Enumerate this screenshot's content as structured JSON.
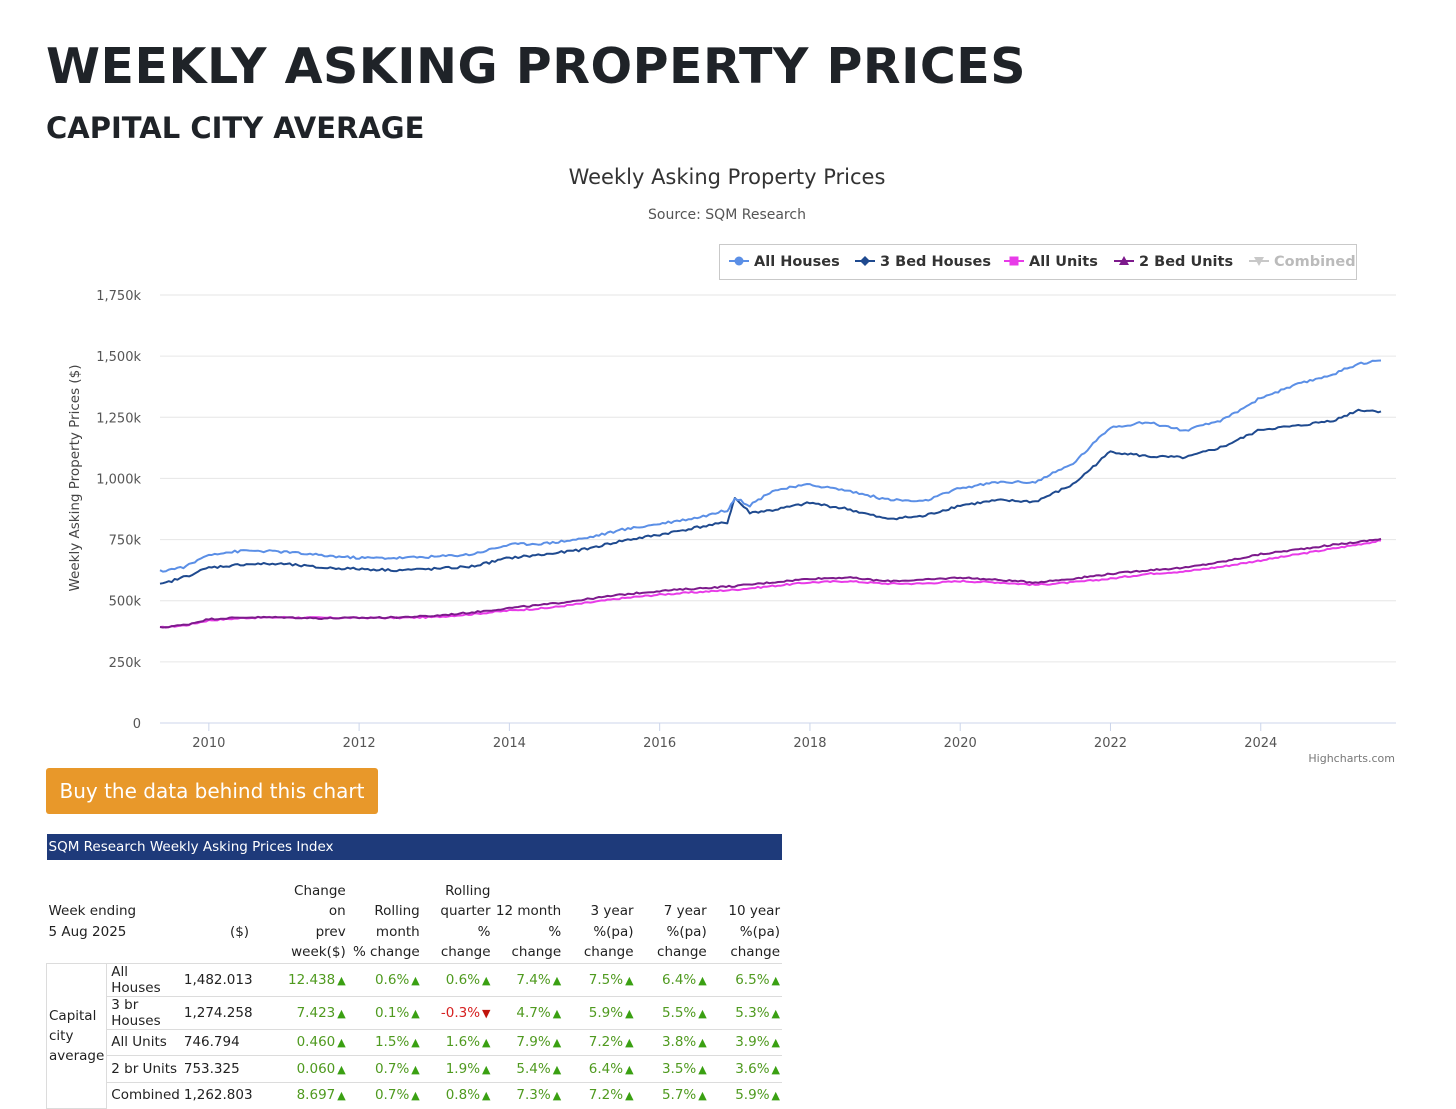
{
  "page": {
    "title": "WEEKLY ASKING PROPERTY PRICES",
    "subtitle": "CAPITAL CITY AVERAGE",
    "buy_button": "Buy the data behind this chart",
    "credits": "Highcharts.com"
  },
  "colors": {
    "all_houses": "#5b8fe6",
    "bed3_houses": "#1f4a8f",
    "all_units": "#e83be8",
    "bed2_units": "#7d1a8c",
    "combined": "#c8c8c8",
    "header_bar": "#1e3a7a",
    "button": "#e8982a",
    "positive": "#4f9a1f",
    "negative": "#d62020"
  },
  "chart_data": {
    "type": "line",
    "title": "Weekly Asking Property Prices",
    "subtitle": "Source: SQM Research",
    "xlabel": "",
    "ylabel": "Weekly Asking Property Prices ($)",
    "x_ticks": [
      "2010",
      "2012",
      "2014",
      "2016",
      "2018",
      "2020",
      "2022",
      "2024"
    ],
    "x_tick_values": [
      2010,
      2012,
      2014,
      2016,
      2018,
      2020,
      2022,
      2024
    ],
    "y_ticks": [
      "0",
      "250k",
      "500k",
      "750k",
      "1,000k",
      "1,250k",
      "1,500k",
      "1,750k"
    ],
    "y_tick_values": [
      0,
      250,
      500,
      750,
      1000,
      1250,
      1500,
      1750
    ],
    "xlim": [
      2009.35,
      2025.8
    ],
    "ylim": [
      0,
      1750
    ],
    "legend_position": "top-right",
    "series": [
      {
        "name": "All Houses",
        "key": "all_houses",
        "marker": "circle",
        "visible": true,
        "points": [
          [
            2009.35,
            620
          ],
          [
            2009.7,
            640
          ],
          [
            2010.0,
            690
          ],
          [
            2010.5,
            705
          ],
          [
            2011.0,
            700
          ],
          [
            2011.5,
            685
          ],
          [
            2012.0,
            675
          ],
          [
            2012.5,
            675
          ],
          [
            2013.0,
            680
          ],
          [
            2013.5,
            690
          ],
          [
            2014.0,
            730
          ],
          [
            2014.5,
            735
          ],
          [
            2015.0,
            755
          ],
          [
            2015.5,
            790
          ],
          [
            2016.0,
            815
          ],
          [
            2016.5,
            840
          ],
          [
            2016.9,
            870
          ],
          [
            2017.0,
            920
          ],
          [
            2017.2,
            890
          ],
          [
            2017.5,
            950
          ],
          [
            2018.0,
            975
          ],
          [
            2018.5,
            950
          ],
          [
            2019.0,
            915
          ],
          [
            2019.5,
            905
          ],
          [
            2020.0,
            960
          ],
          [
            2020.5,
            985
          ],
          [
            2021.0,
            985
          ],
          [
            2021.5,
            1060
          ],
          [
            2022.0,
            1210
          ],
          [
            2022.5,
            1230
          ],
          [
            2023.0,
            1195
          ],
          [
            2023.5,
            1240
          ],
          [
            2024.0,
            1330
          ],
          [
            2024.5,
            1385
          ],
          [
            2025.0,
            1430
          ],
          [
            2025.3,
            1470
          ],
          [
            2025.6,
            1482
          ]
        ]
      },
      {
        "name": "3 Bed Houses",
        "key": "bed3_houses",
        "marker": "diamond",
        "visible": true,
        "points": [
          [
            2009.35,
            565
          ],
          [
            2009.7,
            600
          ],
          [
            2010.0,
            635
          ],
          [
            2010.5,
            650
          ],
          [
            2011.0,
            650
          ],
          [
            2011.5,
            635
          ],
          [
            2012.0,
            630
          ],
          [
            2012.5,
            625
          ],
          [
            2013.0,
            630
          ],
          [
            2013.5,
            640
          ],
          [
            2014.0,
            675
          ],
          [
            2014.5,
            690
          ],
          [
            2015.0,
            710
          ],
          [
            2015.5,
            745
          ],
          [
            2016.0,
            770
          ],
          [
            2016.5,
            800
          ],
          [
            2016.9,
            820
          ],
          [
            2017.0,
            920
          ],
          [
            2017.2,
            860
          ],
          [
            2017.5,
            870
          ],
          [
            2018.0,
            900
          ],
          [
            2018.5,
            875
          ],
          [
            2019.0,
            835
          ],
          [
            2019.5,
            845
          ],
          [
            2020.0,
            890
          ],
          [
            2020.5,
            910
          ],
          [
            2021.0,
            905
          ],
          [
            2021.5,
            975
          ],
          [
            2022.0,
            1110
          ],
          [
            2022.5,
            1090
          ],
          [
            2023.0,
            1085
          ],
          [
            2023.5,
            1130
          ],
          [
            2024.0,
            1200
          ],
          [
            2024.5,
            1215
          ],
          [
            2025.0,
            1240
          ],
          [
            2025.3,
            1280
          ],
          [
            2025.6,
            1274
          ]
        ]
      },
      {
        "name": "All Units",
        "key": "all_units",
        "marker": "square",
        "visible": true,
        "points": [
          [
            2009.35,
            390
          ],
          [
            2009.7,
            400
          ],
          [
            2010.0,
            420
          ],
          [
            2010.5,
            430
          ],
          [
            2011.0,
            432
          ],
          [
            2011.5,
            430
          ],
          [
            2012.0,
            430
          ],
          [
            2012.5,
            430
          ],
          [
            2013.0,
            433
          ],
          [
            2013.5,
            445
          ],
          [
            2014.0,
            460
          ],
          [
            2014.5,
            470
          ],
          [
            2015.0,
            490
          ],
          [
            2015.5,
            510
          ],
          [
            2016.0,
            525
          ],
          [
            2016.5,
            535
          ],
          [
            2017.0,
            545
          ],
          [
            2017.5,
            560
          ],
          [
            2018.0,
            575
          ],
          [
            2018.5,
            580
          ],
          [
            2019.0,
            570
          ],
          [
            2019.5,
            570
          ],
          [
            2020.0,
            580
          ],
          [
            2020.5,
            575
          ],
          [
            2021.0,
            565
          ],
          [
            2021.5,
            575
          ],
          [
            2022.0,
            590
          ],
          [
            2022.5,
            610
          ],
          [
            2023.0,
            620
          ],
          [
            2023.5,
            640
          ],
          [
            2024.0,
            665
          ],
          [
            2024.5,
            690
          ],
          [
            2025.0,
            715
          ],
          [
            2025.3,
            730
          ],
          [
            2025.6,
            746
          ]
        ]
      },
      {
        "name": "2 Bed Units",
        "key": "bed2_units",
        "marker": "triangle",
        "visible": true,
        "points": [
          [
            2009.35,
            390
          ],
          [
            2009.7,
            402
          ],
          [
            2010.0,
            425
          ],
          [
            2010.5,
            432
          ],
          [
            2011.0,
            432
          ],
          [
            2011.5,
            428
          ],
          [
            2012.0,
            430
          ],
          [
            2012.5,
            432
          ],
          [
            2013.0,
            438
          ],
          [
            2013.5,
            452
          ],
          [
            2014.0,
            470
          ],
          [
            2014.5,
            485
          ],
          [
            2015.0,
            505
          ],
          [
            2015.5,
            525
          ],
          [
            2016.0,
            540
          ],
          [
            2016.5,
            550
          ],
          [
            2017.0,
            560
          ],
          [
            2017.5,
            575
          ],
          [
            2018.0,
            590
          ],
          [
            2018.5,
            595
          ],
          [
            2019.0,
            580
          ],
          [
            2019.5,
            585
          ],
          [
            2020.0,
            595
          ],
          [
            2020.5,
            585
          ],
          [
            2021.0,
            575
          ],
          [
            2021.5,
            590
          ],
          [
            2022.0,
            610
          ],
          [
            2022.5,
            625
          ],
          [
            2023.0,
            635
          ],
          [
            2023.5,
            660
          ],
          [
            2024.0,
            690
          ],
          [
            2024.5,
            710
          ],
          [
            2025.0,
            730
          ],
          [
            2025.3,
            740
          ],
          [
            2025.6,
            753
          ]
        ]
      },
      {
        "name": "Combined",
        "key": "combined",
        "marker": "triangle-down",
        "visible": false,
        "points": []
      }
    ]
  },
  "table": {
    "caption": "SQM Research Weekly Asking Prices Index",
    "week_label": "Week ending",
    "week_value": "5 Aug 2025",
    "currency_header": "($)",
    "headers": [
      [
        "Change",
        "on",
        "prev",
        "week($)"
      ],
      [
        "Rolling",
        "month",
        "% change"
      ],
      [
        "Rolling",
        "quarter",
        "% change"
      ],
      [
        "12 month",
        "% change"
      ],
      [
        "3 year",
        "%(pa)",
        "change"
      ],
      [
        "7 year",
        "%(pa)",
        "change"
      ],
      [
        "10 year",
        "%(pa)",
        "change"
      ]
    ],
    "group_label": [
      "Capital",
      "city",
      "average"
    ],
    "rows": [
      {
        "label": "All Houses",
        "value": "1,482.013",
        "cells": [
          {
            "v": "12.438",
            "d": "up"
          },
          {
            "v": "0.6%",
            "d": "up"
          },
          {
            "v": "0.6%",
            "d": "up"
          },
          {
            "v": "7.4%",
            "d": "up"
          },
          {
            "v": "7.5%",
            "d": "up"
          },
          {
            "v": "6.4%",
            "d": "up"
          },
          {
            "v": "6.5%",
            "d": "up"
          }
        ]
      },
      {
        "label": "3 br Houses",
        "value": "1,274.258",
        "cells": [
          {
            "v": "7.423",
            "d": "up"
          },
          {
            "v": "0.1%",
            "d": "up"
          },
          {
            "v": "-0.3%",
            "d": "down"
          },
          {
            "v": "4.7%",
            "d": "up"
          },
          {
            "v": "5.9%",
            "d": "up"
          },
          {
            "v": "5.5%",
            "d": "up"
          },
          {
            "v": "5.3%",
            "d": "up"
          }
        ]
      },
      {
        "label": "All Units",
        "value": "746.794",
        "cells": [
          {
            "v": "0.460",
            "d": "up"
          },
          {
            "v": "1.5%",
            "d": "up"
          },
          {
            "v": "1.6%",
            "d": "up"
          },
          {
            "v": "7.9%",
            "d": "up"
          },
          {
            "v": "7.2%",
            "d": "up"
          },
          {
            "v": "3.8%",
            "d": "up"
          },
          {
            "v": "3.9%",
            "d": "up"
          }
        ]
      },
      {
        "label": "2 br Units",
        "value": "753.325",
        "cells": [
          {
            "v": "0.060",
            "d": "up"
          },
          {
            "v": "0.7%",
            "d": "up"
          },
          {
            "v": "1.9%",
            "d": "up"
          },
          {
            "v": "5.4%",
            "d": "up"
          },
          {
            "v": "6.4%",
            "d": "up"
          },
          {
            "v": "3.5%",
            "d": "up"
          },
          {
            "v": "3.6%",
            "d": "up"
          }
        ]
      },
      {
        "label": "Combined",
        "value": "1,262.803",
        "cells": [
          {
            "v": "8.697",
            "d": "up"
          },
          {
            "v": "0.7%",
            "d": "up"
          },
          {
            "v": "0.8%",
            "d": "up"
          },
          {
            "v": "7.3%",
            "d": "up"
          },
          {
            "v": "7.2%",
            "d": "up"
          },
          {
            "v": "5.7%",
            "d": "up"
          },
          {
            "v": "5.9%",
            "d": "up"
          }
        ]
      }
    ]
  }
}
